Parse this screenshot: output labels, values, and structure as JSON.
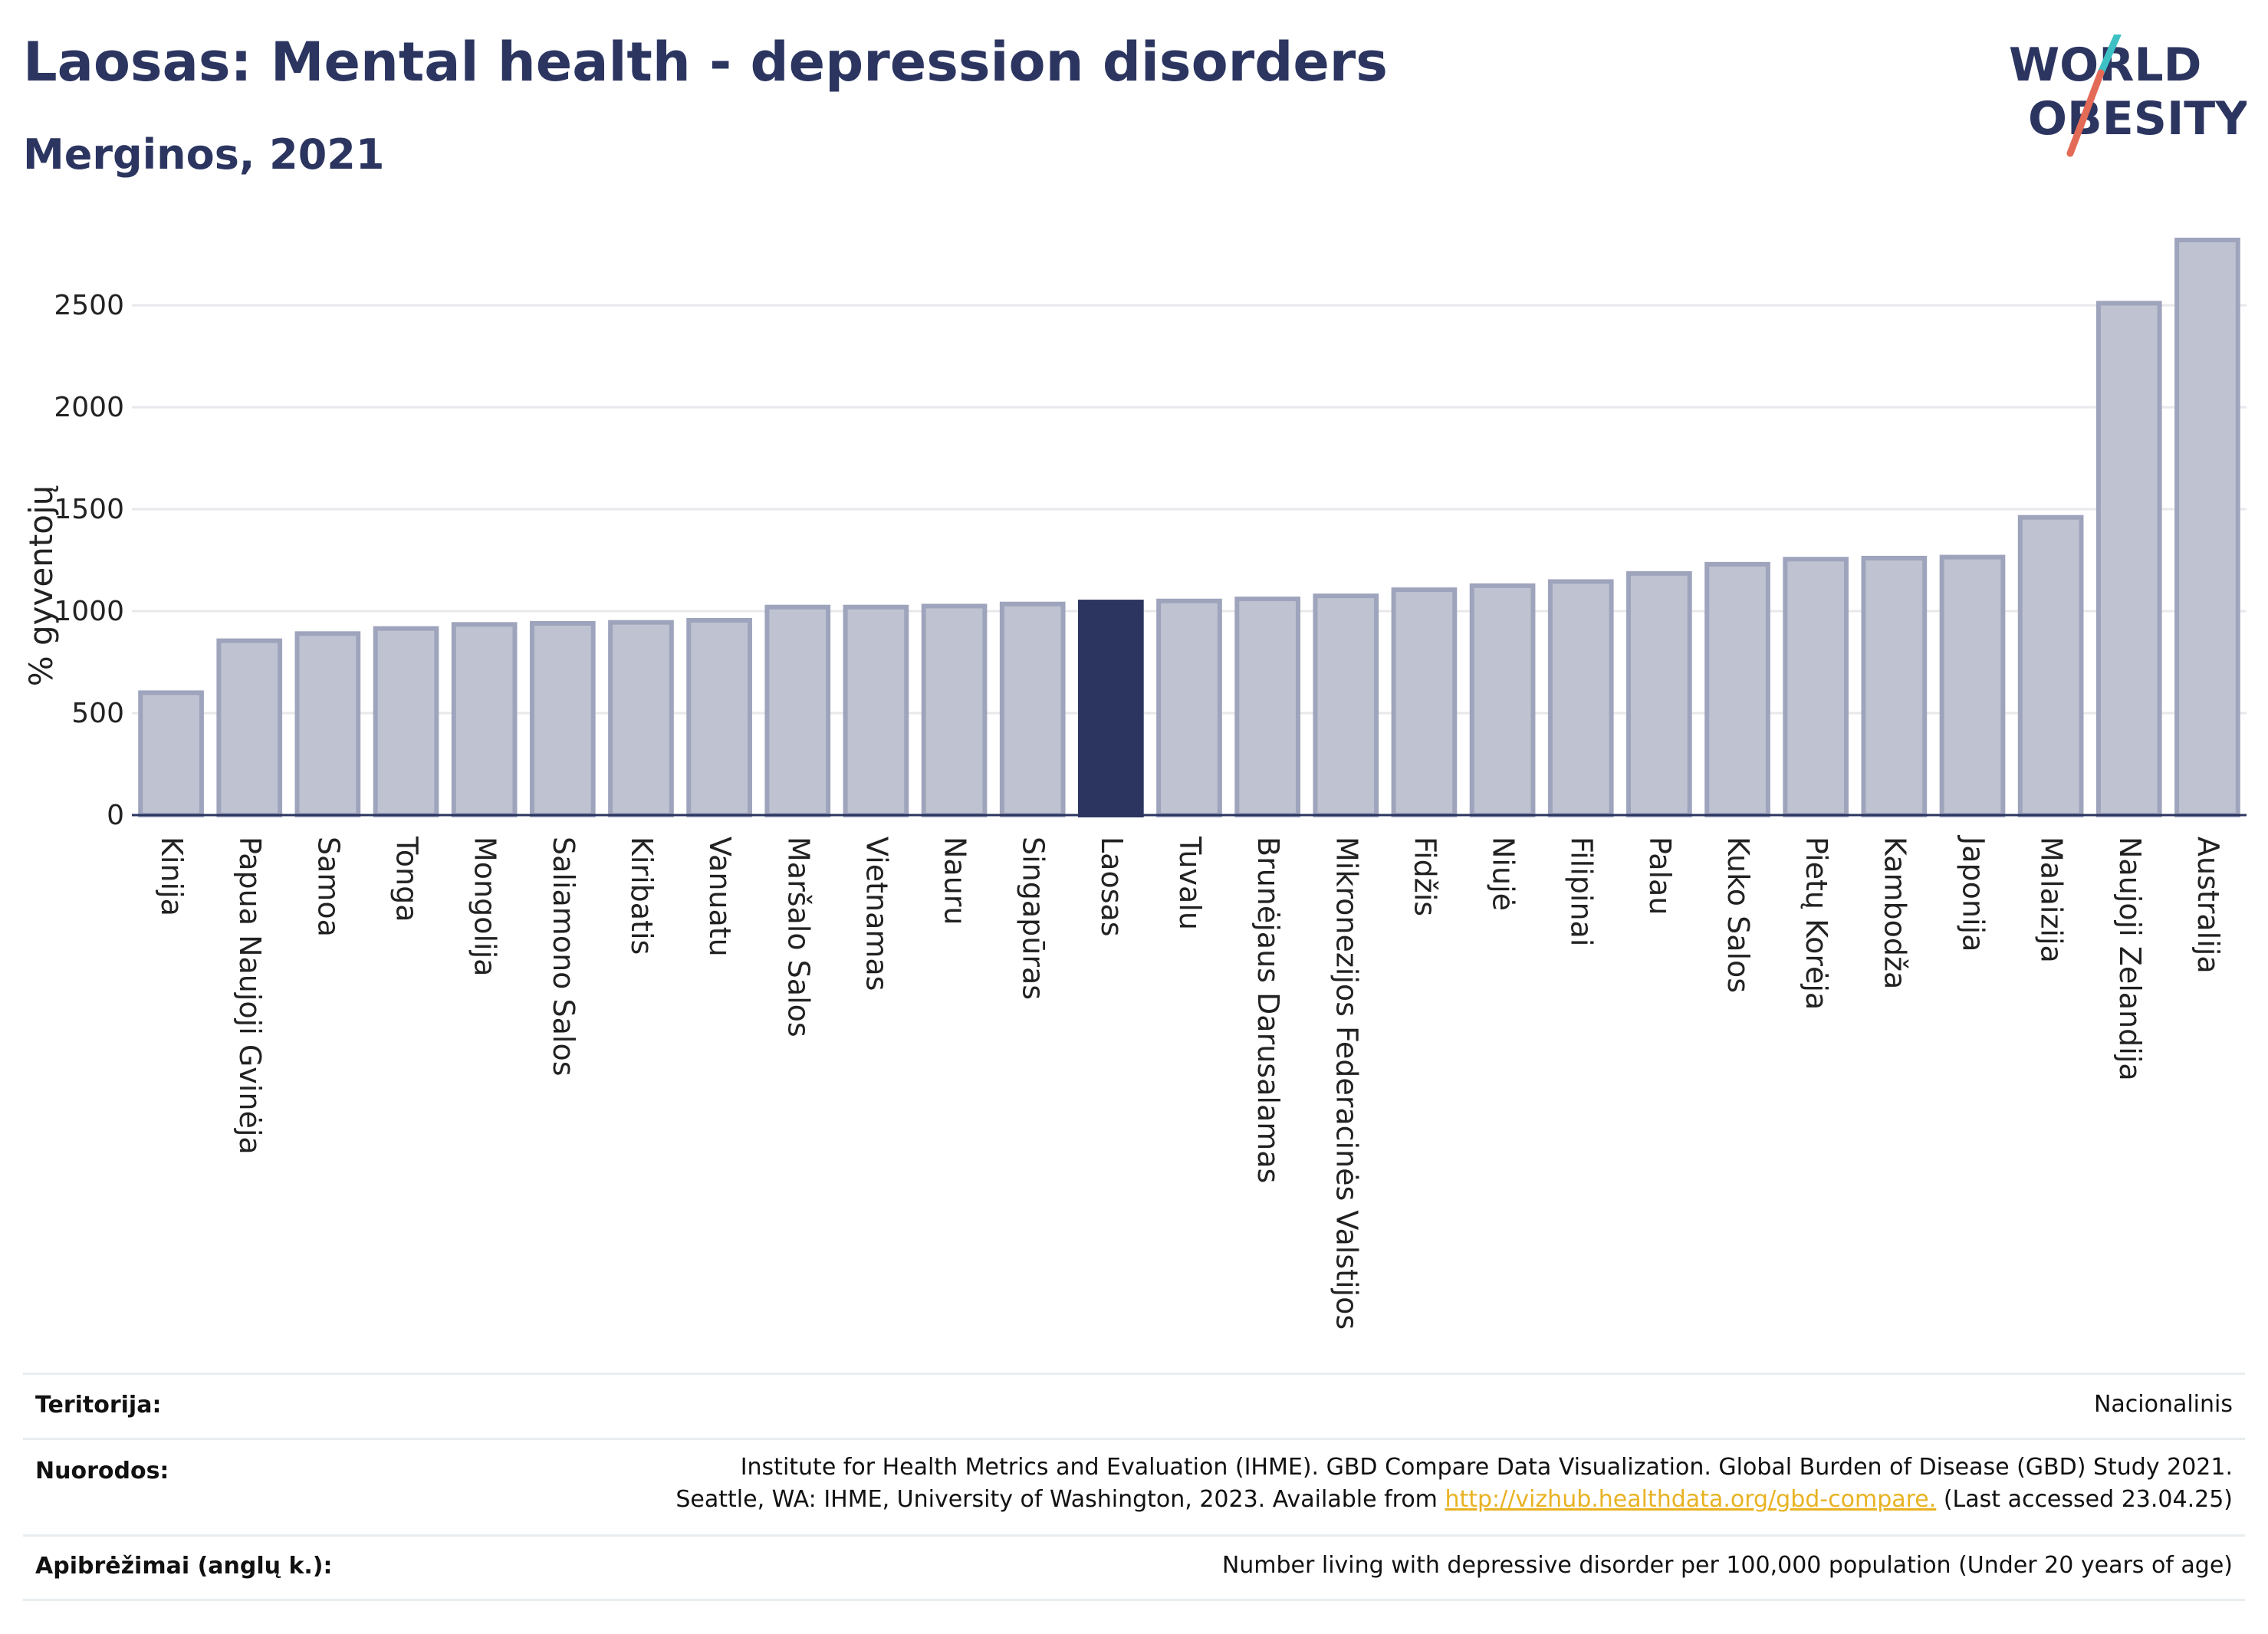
{
  "header": {
    "title": "Laosas: Mental health - depression disorders",
    "subtitle": "Merginos, 2021"
  },
  "logo": {
    "line1": "WORLD",
    "line2": "OBESITY",
    "accent_colors": [
      "#e36a57",
      "#3ec1c4"
    ]
  },
  "colors": {
    "bar": "#bfc3d1",
    "bar_border": "#9ea4bc",
    "highlight": "#2b3560",
    "grid": "#e8e8ec",
    "text": "#2b3560",
    "link": "#e8b222"
  },
  "chart_data": {
    "type": "bar",
    "title": "Laosas: Mental health - depression disorders",
    "subtitle": "Merginos, 2021",
    "ylabel": "% gyventojų",
    "xlabel": "",
    "ylim": [
      0,
      2850
    ],
    "yticks": [
      0,
      500,
      1000,
      1500,
      2000,
      2500
    ],
    "grid": true,
    "highlight_category": "Laosas",
    "categories": [
      "Kinija",
      "Papua Naujoji Gvinėja",
      "Samoa",
      "Tonga",
      "Mongolija",
      "Saliamono Salos",
      "Kiribatis",
      "Vanuatu",
      "Maršalo Salos",
      "Vietnamas",
      "Nauru",
      "Singapūras",
      "Laosas",
      "Tuvalu",
      "Brunėjaus Darusalamas",
      "Mikronezijos Federacinės Valstijos",
      "Fidžis",
      "Niujė",
      "Filipinai",
      "Palau",
      "Kuko Salos",
      "Pietų Korėja",
      "Kambodža",
      "Japonija",
      "Malaizija",
      "Naujoji Zelandija",
      "Australija"
    ],
    "values": [
      600,
      855,
      890,
      915,
      935,
      940,
      945,
      955,
      1020,
      1020,
      1025,
      1035,
      1045,
      1050,
      1060,
      1075,
      1105,
      1125,
      1145,
      1185,
      1230,
      1255,
      1260,
      1265,
      1460,
      2510,
      2820
    ]
  },
  "footer": {
    "territory_label": "Teritorija:",
    "territory_value": "Nacionalinis",
    "sources_label": "Nuorodos:",
    "sources_line1": "Institute for Health Metrics and Evaluation (IHME). GBD Compare Data Visualization. Global Burden of Disease (GBD) Study 2021.",
    "sources_line2_prefix": "Seattle, WA: IHME, University of Washington, 2023. Available from ",
    "sources_link": "http://vizhub.healthdata.org/gbd-compare.",
    "sources_line2_suffix": " (Last accessed 23.04.25)",
    "definitions_label": "Apibrėžimai (anglų k.):",
    "definitions_value": "Number living with depressive disorder per 100,000 population (Under 20 years of age)"
  }
}
